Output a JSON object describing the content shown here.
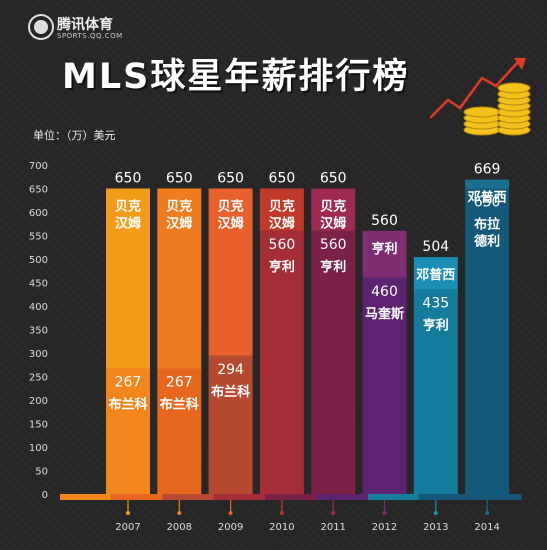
{
  "brand": {
    "name": "腾讯体育",
    "sub": "SPORTS.QQ.COM"
  },
  "title": "MLS球星年薪排行榜",
  "unit": "单位：（万）美元",
  "chart_data": {
    "type": "bar",
    "title": "MLS球星年薪排行榜",
    "ylabel": "单位：（万）美元",
    "xlabel": "",
    "ylim": [
      0,
      700
    ],
    "yticks": [
      0,
      50,
      100,
      150,
      200,
      250,
      300,
      350,
      400,
      450,
      500,
      550,
      600,
      650,
      700
    ],
    "categories": [
      "2007",
      "2008",
      "2009",
      "2010",
      "2011",
      "2012",
      "2013",
      "2014"
    ],
    "series": [
      {
        "values": [
          650,
          650,
          650,
          650,
          650,
          560,
          504,
          669
        ],
        "labels": [
          "贝克汉姆",
          "贝克汉姆",
          "贝克汉姆",
          "贝克汉姆",
          "贝克汉姆",
          "亨利",
          "邓普西",
          "邓普西"
        ]
      },
      {
        "values": [
          267,
          267,
          294,
          560,
          560,
          460,
          435,
          650
        ],
        "labels": [
          "布兰科",
          "布兰科",
          "布兰科",
          "亨利",
          "亨利",
          "马奎斯",
          "亨利",
          "布拉德利"
        ]
      }
    ],
    "colors": {
      "top": [
        "#f39c1a",
        "#ef7d1f",
        "#e8612c",
        "#c0392b",
        "#9e2a4f",
        "#7d2e72",
        "#1b8fb3",
        "#1a6f8f"
      ],
      "bottom": [
        "#f0861c",
        "#e8671f",
        "#b54a30",
        "#a52d36",
        "#7b2148",
        "#5d2370",
        "#167c9e",
        "#14587a"
      ]
    }
  }
}
